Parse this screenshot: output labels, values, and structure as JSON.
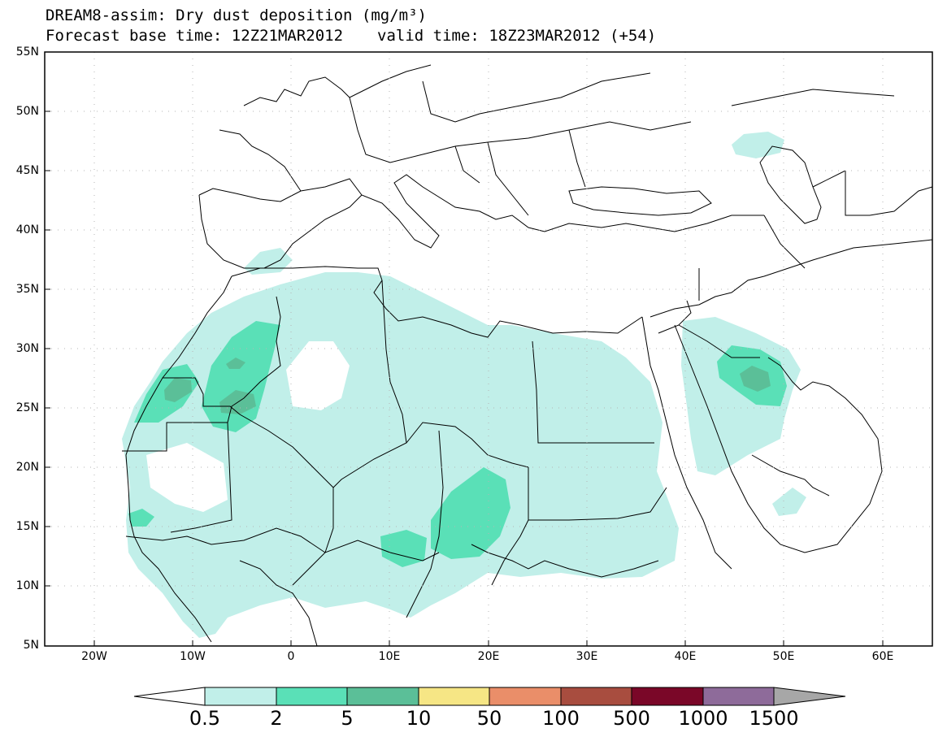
{
  "title": {
    "line1": "DREAM8-assim: Dry dust deposition (mg/m³)",
    "base_time": "Forecast base time: 12Z21MAR2012",
    "valid_time": "valid time: 18Z23MAR2012 (+54)"
  },
  "map": {
    "lat_ticks": [
      "55N",
      "50N",
      "45N",
      "40N",
      "35N",
      "30N",
      "25N",
      "20N",
      "15N",
      "10N",
      "5N"
    ],
    "lon_ticks": [
      "20W",
      "10W",
      "0",
      "10E",
      "20E",
      "30E",
      "40E",
      "50E",
      "60E"
    ],
    "lat_range": [
      5,
      55
    ],
    "lon_range": [
      -25,
      65
    ],
    "grid": true
  },
  "legend": {
    "thresholds": [
      "0.5",
      "2",
      "5",
      "10",
      "50",
      "100",
      "500",
      "1000",
      "1500"
    ],
    "colors": [
      "#c1efe9",
      "#5ae0b7",
      "#5bbf98",
      "#f6e685",
      "#ea8e69",
      "#a84d3f",
      "#7a0728",
      "#8e6b9a",
      "#a7a7a7"
    ]
  }
}
